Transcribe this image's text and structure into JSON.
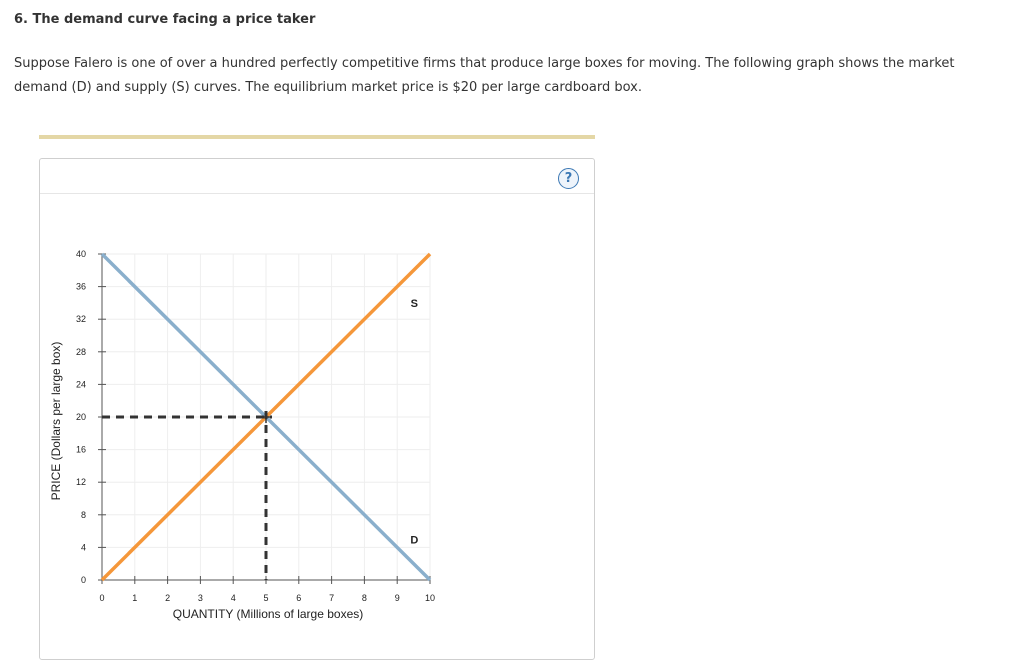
{
  "question": {
    "heading": "6. The demand curve facing a price taker",
    "intro": "Suppose Falero is one of over a hundred perfectly competitive firms that produce large boxes for moving. The following graph shows the market demand (D) and supply (S) curves. The equilibrium market price is $20 per large cardboard box."
  },
  "help_button": {
    "label": "?",
    "icon": "question-mark-icon"
  },
  "colors": {
    "demand": "#8aafcc",
    "supply": "#f5973a",
    "equilibrium": "#333333",
    "grid": "#eeeeee",
    "rule": "#e4d7a6"
  },
  "chart_data": {
    "type": "line",
    "xlabel": "QUANTITY (Millions of large boxes)",
    "ylabel": "PRICE (Dollars per large box)",
    "xlim": [
      0,
      10
    ],
    "ylim": [
      0,
      40
    ],
    "x_ticks": [
      0,
      1,
      2,
      3,
      4,
      5,
      6,
      7,
      8,
      9,
      10
    ],
    "y_ticks": [
      0,
      4,
      8,
      12,
      16,
      20,
      24,
      28,
      32,
      36,
      40
    ],
    "grid": true,
    "series": [
      {
        "name": "D",
        "color": "#8aafcc",
        "points": [
          [
            0,
            40
          ],
          [
            10,
            0
          ]
        ]
      },
      {
        "name": "S",
        "color": "#f5973a",
        "points": [
          [
            0,
            0
          ],
          [
            10,
            40
          ]
        ]
      }
    ],
    "curve_labels": [
      {
        "text": "S",
        "x": 9.4,
        "y": 34
      },
      {
        "text": "D",
        "x": 9.4,
        "y": 5
      }
    ],
    "equilibrium": {
      "x": 5,
      "y": 20
    }
  }
}
